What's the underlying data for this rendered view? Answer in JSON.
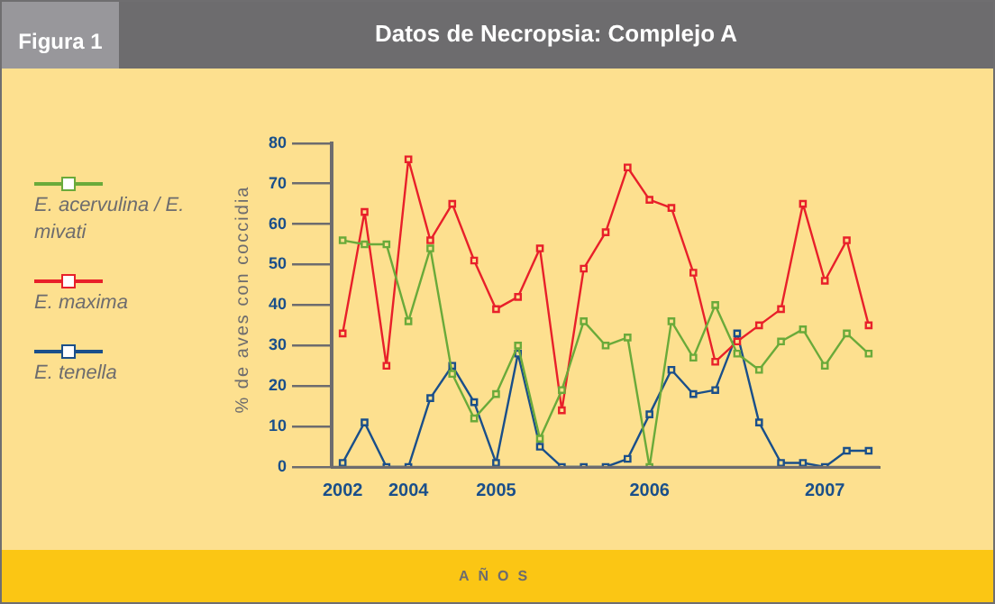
{
  "chart_data": {
    "type": "line",
    "title": "Datos de Necropsia: Complejo A",
    "xlabel": "AÑOS",
    "ylabel": "% de aves con coccidia",
    "annotations": [
      "Figura 1"
    ],
    "categories": [
      "2002",
      null,
      null,
      "2004",
      null,
      null,
      null,
      "2005",
      null,
      null,
      null,
      null,
      null,
      null,
      "2006",
      null,
      null,
      null,
      null,
      null,
      null,
      null,
      "2007",
      null,
      null
    ],
    "series": [
      {
        "name": "E. acervulina / E. mivati",
        "color": "#6aaa3a",
        "values": [
          56,
          55,
          55,
          36,
          54,
          23,
          12,
          18,
          30,
          7,
          19,
          36,
          30,
          32,
          0,
          36,
          27,
          40,
          28,
          24,
          31,
          34,
          25,
          33,
          28
        ]
      },
      {
        "name": "E. maxima",
        "color": "#e8202a",
        "values": [
          33,
          63,
          25,
          76,
          56,
          65,
          51,
          39,
          42,
          54,
          14,
          49,
          58,
          74,
          66,
          64,
          48,
          26,
          31,
          35,
          39,
          65,
          46,
          56,
          35
        ]
      },
      {
        "name": "E. tenella",
        "color": "#1a4f8a",
        "values": [
          1,
          11,
          0,
          0,
          17,
          25,
          16,
          1,
          28,
          5,
          0,
          0,
          0,
          2,
          13,
          24,
          18,
          19,
          33,
          11,
          1,
          1,
          0,
          4,
          4
        ]
      }
    ],
    "ylim": [
      0,
      80
    ],
    "yticks": [
      0,
      10,
      20,
      30,
      40,
      50,
      60,
      70,
      80
    ],
    "grid": false,
    "legend": "left",
    "marker": "square",
    "line_style": "solid"
  }
}
